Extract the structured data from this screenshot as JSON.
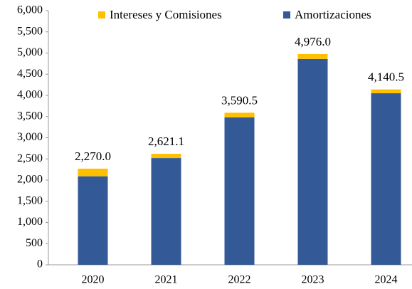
{
  "chart_data": {
    "type": "stacked_bar",
    "categories": [
      "2020",
      "2021",
      "2022",
      "2023",
      "2024"
    ],
    "series": [
      {
        "name": "Amortizaciones",
        "color": "#335a96",
        "values": [
          2090,
          2520,
          3480,
          4860,
          4050
        ]
      },
      {
        "name": "Intereses y Comisiones",
        "color": "#ffc000",
        "values": [
          180,
          101.1,
          110.5,
          116,
          90.5
        ]
      }
    ],
    "totals": [
      2270.0,
      2621.1,
      3590.5,
      4976.0,
      4140.5
    ],
    "total_labels": [
      "2,270.0",
      "2,621.1",
      "3,590.5",
      "4,976.0",
      "4,140.5"
    ],
    "ylim": [
      0,
      6000
    ],
    "yticks": [
      0,
      500,
      {
        "value": 1000,
        "label": "1,000"
      },
      {
        "value": 1500,
        "label": "1,500"
      },
      {
        "value": 2000,
        "label": "2,000"
      },
      {
        "value": 2500,
        "label": "2,500"
      },
      {
        "value": 3000,
        "label": "3,000"
      },
      {
        "value": 3500,
        "label": "3,500"
      },
      {
        "value": 4000,
        "label": "4,000"
      },
      {
        "value": 4500,
        "label": "4,500"
      },
      {
        "value": 5000,
        "label": "5,000"
      },
      {
        "value": 5500,
        "label": "5,500"
      },
      {
        "value": 6000,
        "label": "6,000"
      }
    ],
    "grid": false
  }
}
